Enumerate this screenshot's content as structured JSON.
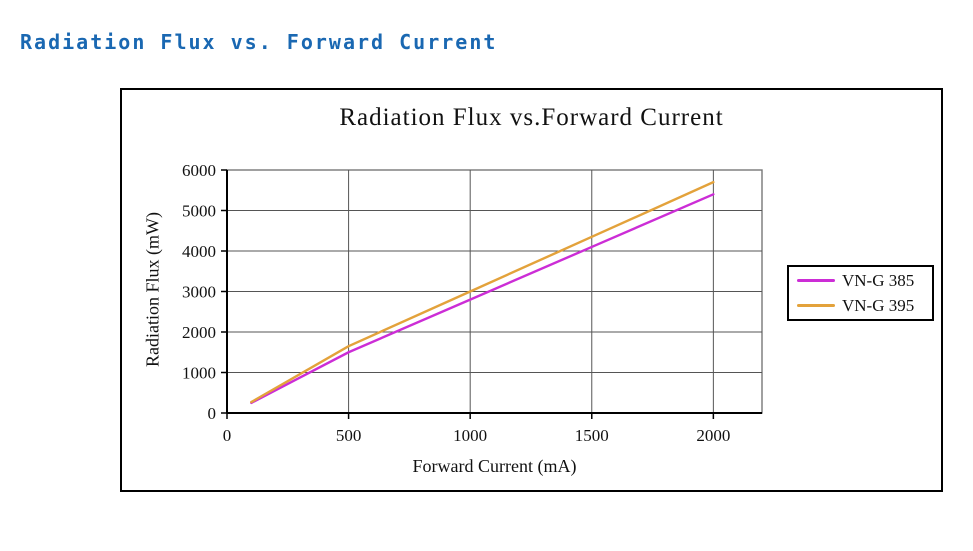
{
  "page": {
    "title": "Radiation Flux vs. Forward Current",
    "title_color": "#1a68b2"
  },
  "chart_data": {
    "type": "line",
    "title": "Radiation Flux vs.Forward Current",
    "xlabel": "Forward Current (mA)",
    "ylabel": "Radiation Flux (mW)",
    "x": [
      100,
      500,
      1000,
      1500,
      2000
    ],
    "series": [
      {
        "name": "VN-G 385",
        "color": "#cc2dd6",
        "values": [
          250,
          1500,
          2800,
          4100,
          5400
        ]
      },
      {
        "name": "VN-G 395",
        "color": "#e3a23b",
        "values": [
          270,
          1650,
          3000,
          4350,
          5700
        ]
      }
    ],
    "xlim": [
      0,
      2200
    ],
    "ylim": [
      0,
      6000
    ],
    "x_ticks": [
      0,
      500,
      1000,
      1500,
      2000
    ],
    "y_ticks": [
      0,
      1000,
      2000,
      3000,
      4000,
      5000,
      6000
    ],
    "grid": true,
    "legend_position": "right",
    "grid_color": "#555555",
    "axis_color": "#000000",
    "frame_color": "#777777"
  }
}
